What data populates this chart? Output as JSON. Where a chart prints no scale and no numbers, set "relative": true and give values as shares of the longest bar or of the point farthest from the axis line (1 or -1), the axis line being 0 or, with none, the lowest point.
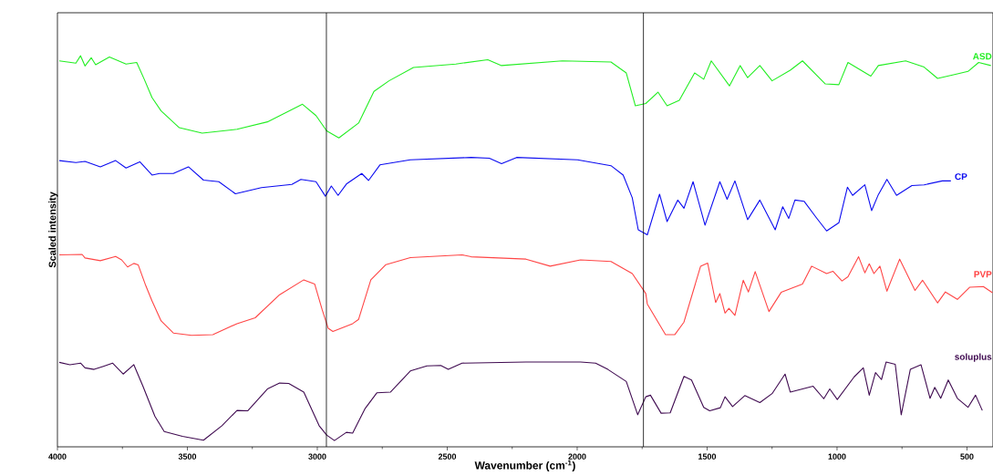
{
  "chart_data": {
    "type": "line",
    "relative": true,
    "xlabel": "Wavenumber (cm$^{-1}$)",
    "ylabel": "Scaled intensity",
    "xlim": [
      4000,
      400
    ],
    "xticks": [
      4000,
      3500,
      3000,
      2500,
      2000,
      1500,
      1000,
      500
    ],
    "tick_labels": "x",
    "legend": false,
    "grid": false,
    "marker": "none",
    "line_style": "solid",
    "ref_lines": [
      {
        "axis": "x",
        "value": 2965,
        "color": "#000000"
      },
      {
        "axis": "x",
        "value": 1745,
        "color": "#000000"
      }
    ],
    "series": [
      {
        "name": "ASD",
        "color": "#22ee22",
        "x": [
          3993,
          3929,
          3911,
          3894,
          3870,
          3853,
          3800,
          3736,
          3695,
          3666,
          3636,
          3601,
          3531,
          3443,
          3309,
          3192,
          3057,
          3005,
          2964,
          2917,
          2841,
          2782,
          2724,
          2630,
          2467,
          2344,
          2291,
          2057,
          1870,
          1811,
          1776,
          1736,
          1689,
          1654,
          1607,
          1548,
          1513,
          1484,
          1414,
          1373,
          1344,
          1297,
          1250,
          1180,
          1133,
          1045,
          993,
          958,
          870,
          841,
          736,
          665,
          613,
          548,
          496,
          455,
          408
        ],
        "values": [
          0.987,
          0.981,
          1.0,
          0.974,
          0.995,
          0.977,
          0.997,
          0.979,
          0.983,
          0.94,
          0.893,
          0.859,
          0.816,
          0.802,
          0.812,
          0.831,
          0.876,
          0.847,
          0.808,
          0.79,
          0.828,
          0.909,
          0.936,
          0.97,
          0.979,
          0.99,
          0.975,
          0.987,
          0.984,
          0.956,
          0.872,
          0.878,
          0.907,
          0.872,
          0.886,
          0.956,
          0.94,
          0.987,
          0.923,
          0.975,
          0.944,
          0.975,
          0.936,
          0.963,
          0.987,
          0.928,
          0.926,
          0.983,
          0.948,
          0.975,
          0.987,
          0.971,
          0.942,
          0.952,
          0.96,
          0.983,
          0.975
        ]
      },
      {
        "name": "CP",
        "color": "#0a0af0",
        "x": [
          3993,
          3929,
          3894,
          3835,
          3776,
          3736,
          3683,
          3636,
          3607,
          3554,
          3496,
          3438,
          3379,
          3315,
          3215,
          3098,
          3063,
          3005,
          2969,
          2946,
          2920,
          2888,
          2829,
          2803,
          2759,
          2642,
          2408,
          2338,
          2291,
          2233,
          1999,
          1870,
          1823,
          1788,
          1765,
          1730,
          1683,
          1654,
          1613,
          1589,
          1554,
          1508,
          1451,
          1423,
          1393,
          1344,
          1297,
          1238,
          1209,
          1186,
          1162,
          1127,
          1081,
          1040,
          993,
          960,
          940,
          893,
          867,
          841,
          808,
          771,
          712,
          665,
          595,
          562
        ],
        "values": [
          0.732,
          0.727,
          0.73,
          0.716,
          0.732,
          0.713,
          0.729,
          0.695,
          0.699,
          0.699,
          0.716,
          0.682,
          0.678,
          0.647,
          0.663,
          0.671,
          0.684,
          0.678,
          0.641,
          0.667,
          0.643,
          0.672,
          0.699,
          0.681,
          0.721,
          0.734,
          0.74,
          0.738,
          0.724,
          0.74,
          0.734,
          0.719,
          0.695,
          0.637,
          0.555,
          0.542,
          0.646,
          0.576,
          0.631,
          0.61,
          0.678,
          0.567,
          0.678,
          0.633,
          0.68,
          0.581,
          0.631,
          0.555,
          0.614,
          0.584,
          0.631,
          0.628,
          0.587,
          0.552,
          0.573,
          0.664,
          0.643,
          0.67,
          0.604,
          0.645,
          0.684,
          0.643,
          0.668,
          0.67,
          0.68,
          0.68
        ]
      },
      {
        "name": "PVP",
        "color": "#ff4545",
        "x": [
          3993,
          3905,
          3894,
          3835,
          3776,
          3753,
          3730,
          3706,
          3689,
          3660,
          3636,
          3601,
          3554,
          3484,
          3402,
          3309,
          3239,
          3145,
          3052,
          3010,
          2981,
          2958,
          2940,
          2864,
          2841,
          2794,
          2736,
          2642,
          2443,
          2408,
          2197,
          2104,
          1987,
          1870,
          1788,
          1736,
          1730,
          1660,
          1624,
          1589,
          1525,
          1498,
          1467,
          1451,
          1431,
          1416,
          1393,
          1361,
          1341,
          1315,
          1262,
          1215,
          1133,
          1098,
          1040,
          1016,
          981,
          958,
          917,
          893,
          876,
          858,
          835,
          808,
          759,
          700,
          671,
          613,
          583,
          537,
          490,
          437,
          402
        ],
        "values": [
          0.491,
          0.492,
          0.483,
          0.476,
          0.487,
          0.478,
          0.46,
          0.469,
          0.465,
          0.412,
          0.373,
          0.322,
          0.291,
          0.285,
          0.287,
          0.315,
          0.33,
          0.389,
          0.427,
          0.416,
          0.35,
          0.303,
          0.295,
          0.315,
          0.326,
          0.427,
          0.466,
          0.484,
          0.491,
          0.486,
          0.48,
          0.462,
          0.478,
          0.474,
          0.443,
          0.392,
          0.365,
          0.287,
          0.287,
          0.319,
          0.462,
          0.47,
          0.369,
          0.392,
          0.342,
          0.354,
          0.336,
          0.426,
          0.396,
          0.448,
          0.346,
          0.395,
          0.416,
          0.462,
          0.443,
          0.449,
          0.424,
          0.435,
          0.486,
          0.445,
          0.468,
          0.443,
          0.462,
          0.398,
          0.48,
          0.4,
          0.426,
          0.368,
          0.396,
          0.377,
          0.408,
          0.41,
          0.394
        ]
      },
      {
        "name": "soluplus",
        "color": "#3f0a50",
        "x": [
          3993,
          3952,
          3911,
          3894,
          3859,
          3823,
          3788,
          3747,
          3706,
          3671,
          3625,
          3589,
          3519,
          3438,
          3367,
          3309,
          3268,
          3192,
          3145,
          3110,
          3052,
          2993,
          2964,
          2934,
          2888,
          2864,
          2817,
          2771,
          2718,
          2642,
          2578,
          2525,
          2496,
          2443,
          2197,
          1987,
          1929,
          1882,
          1811,
          1767,
          1736,
          1718,
          1677,
          1642,
          1589,
          1560,
          1513,
          1490,
          1449,
          1431,
          1402,
          1355,
          1297,
          1250,
          1200,
          1180,
          1092,
          1051,
          1028,
          999,
          934,
          899,
          876,
          852,
          829,
          811,
          776,
          753,
          718,
          677,
          642,
          624,
          601,
          572,
          537,
          496,
          467,
          441
        ],
        "values": [
          0.216,
          0.21,
          0.214,
          0.202,
          0.198,
          0.206,
          0.214,
          0.186,
          0.21,
          0.155,
          0.078,
          0.039,
          0.027,
          0.017,
          0.054,
          0.093,
          0.092,
          0.148,
          0.163,
          0.162,
          0.14,
          0.054,
          0.03,
          0.016,
          0.037,
          0.035,
          0.097,
          0.138,
          0.14,
          0.194,
          0.207,
          0.208,
          0.198,
          0.214,
          0.217,
          0.217,
          0.214,
          0.198,
          0.167,
          0.082,
          0.128,
          0.132,
          0.086,
          0.087,
          0.18,
          0.171,
          0.101,
          0.092,
          0.1,
          0.128,
          0.103,
          0.131,
          0.113,
          0.136,
          0.186,
          0.14,
          0.155,
          0.123,
          0.148,
          0.121,
          0.179,
          0.202,
          0.132,
          0.19,
          0.172,
          0.217,
          0.211,
          0.082,
          0.198,
          0.21,
          0.124,
          0.152,
          0.124,
          0.171,
          0.124,
          0.101,
          0.132,
          0.093
        ]
      }
    ]
  }
}
